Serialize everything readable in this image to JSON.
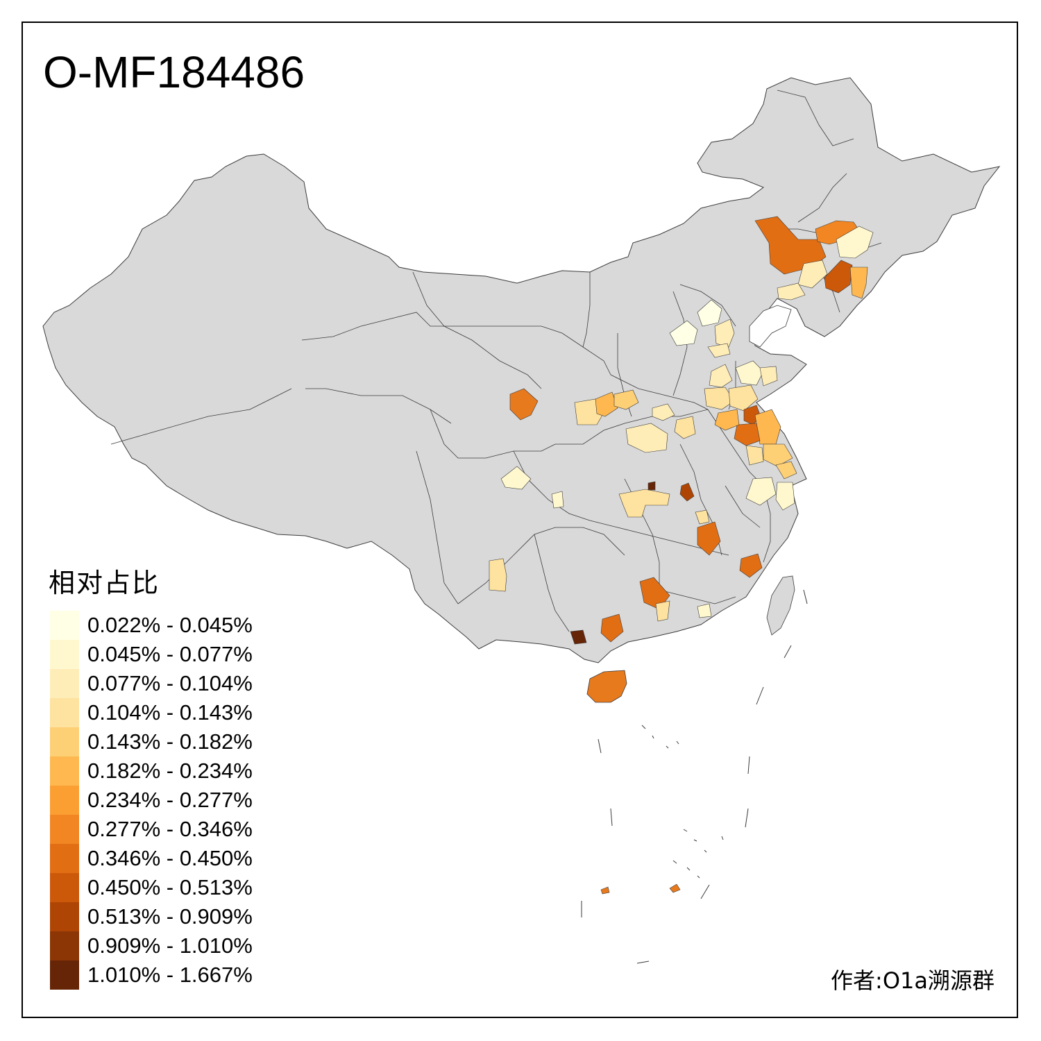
{
  "title": "O-MF184486",
  "legend": {
    "title": "相对占比",
    "items": [
      {
        "label": "0.022% - 0.045%",
        "color": "#FFFFE5"
      },
      {
        "label": "0.045% - 0.077%",
        "color": "#FFF8CF"
      },
      {
        "label": "0.077% - 0.104%",
        "color": "#FFEDB8"
      },
      {
        "label": "0.104% - 0.143%",
        "color": "#FEE29F"
      },
      {
        "label": "0.143% - 0.182%",
        "color": "#FED076"
      },
      {
        "label": "0.182% - 0.234%",
        "color": "#FEB84F"
      },
      {
        "label": "0.234% - 0.277%",
        "color": "#FB9F33"
      },
      {
        "label": "0.277% - 0.346%",
        "color": "#F28622"
      },
      {
        "label": "0.346% - 0.450%",
        "color": "#E26E14"
      },
      {
        "label": "0.450% - 0.513%",
        "color": "#CC580A"
      },
      {
        "label": "0.513% - 0.909%",
        "color": "#AE4504"
      },
      {
        "label": "0.909% - 1.010%",
        "color": "#8C3605"
      },
      {
        "label": "1.010% - 1.667%",
        "color": "#662506"
      }
    ]
  },
  "author": "作者:O1a溯源群",
  "colors": {
    "land": "#D9D9D9",
    "border": "#3A3A3A",
    "sea": "#FFFFFF"
  }
}
